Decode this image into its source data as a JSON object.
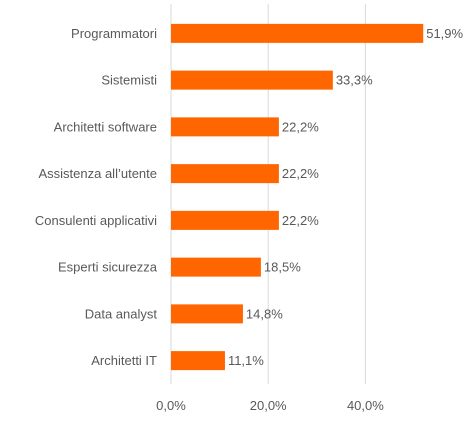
{
  "chart_data": {
    "type": "bar",
    "orientation": "horizontal",
    "categories": [
      "Programmatori",
      "Sistemisti",
      "Architetti software",
      "Assistenza all’utente",
      "Consulenti applicativi",
      "Esperti sicurezza",
      "Data analyst",
      "Architetti IT"
    ],
    "values": [
      51.9,
      33.3,
      22.2,
      22.2,
      22.2,
      18.5,
      14.8,
      11.1
    ],
    "value_labels": [
      "51,9%",
      "33,3%",
      "22,2%",
      "22,2%",
      "22,2%",
      "18,5%",
      "14,8%",
      "11,1%"
    ],
    "x_ticks": [
      0,
      20,
      40
    ],
    "x_tick_labels": [
      "0,0%",
      "20,0%",
      "40,0%"
    ],
    "xlim": [
      0,
      55
    ],
    "grid": "vertical",
    "legend": "none",
    "title": "",
    "xlabel": "",
    "ylabel": "",
    "colors": {
      "bar": "#FF6600",
      "grid": "#D9D9D9",
      "text": "#595959"
    }
  }
}
